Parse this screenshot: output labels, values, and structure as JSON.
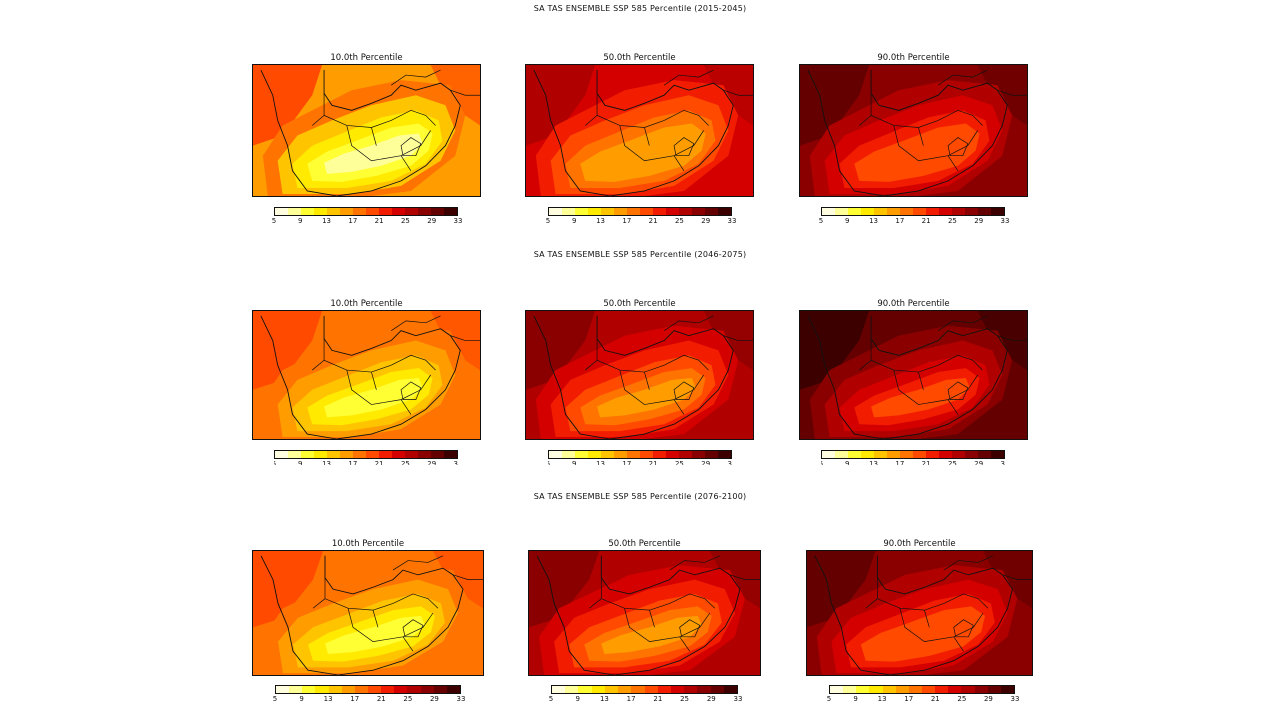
{
  "rows": [
    {
      "title": "SA TAS ENSEMBLE SSP 585 Percentile (2015-2045)"
    },
    {
      "title": "SA TAS ENSEMBLE SSP 585 Percentile (2046-2075)"
    },
    {
      "title": "SA TAS ENSEMBLE SSP 585 Percentile (2076-2100)"
    }
  ],
  "panel_titles": [
    "10.0th Percentile",
    "50.0th Percentile",
    "90.0th Percentile"
  ],
  "colorbar": {
    "ticks": [
      "5",
      "9",
      "13",
      "17",
      "21",
      "25",
      "29",
      "33"
    ],
    "colors": [
      "#fffde0",
      "#ffff9a",
      "#ffff33",
      "#ffea00",
      "#ffc400",
      "#ff9d00",
      "#ff7300",
      "#ff4a00",
      "#f21d00",
      "#d40000",
      "#b00000",
      "#8a0000",
      "#650000",
      "#3d0000"
    ]
  },
  "panel_fills": [
    [
      "level-10-warm-orange",
      "level-50-red",
      "level-90-dark-red"
    ],
    [
      "level-10-warm-orange",
      "level-50-red",
      "level-90-dark-red"
    ],
    [
      "level-10-warm-orange",
      "level-50-red",
      "level-90-dark-red"
    ]
  ]
}
